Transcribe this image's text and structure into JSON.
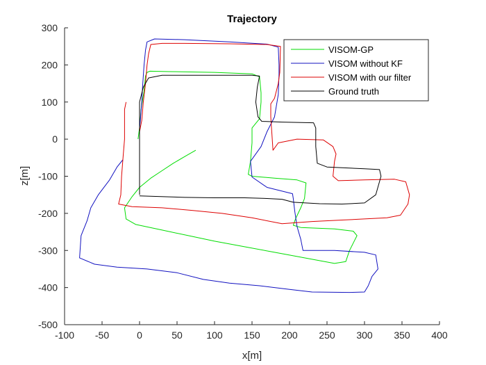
{
  "chart_data": {
    "type": "line",
    "title": "Trajectory",
    "xlabel": "x[m]",
    "ylabel": "z[m]",
    "xlim": [
      -100,
      400
    ],
    "ylim": [
      -500,
      300
    ],
    "xticks": [
      -100,
      -50,
      0,
      50,
      100,
      150,
      200,
      250,
      300,
      350,
      400
    ],
    "yticks": [
      -500,
      -400,
      -300,
      -200,
      -100,
      0,
      100,
      200,
      300
    ],
    "grid": false,
    "legend_position": "top-right",
    "series": [
      {
        "name": "VISOM-GP",
        "color": "#00dd00",
        "points": [
          [
            75,
            -30
          ],
          [
            62,
            -45
          ],
          [
            45,
            -65
          ],
          [
            30,
            -85
          ],
          [
            15,
            -105
          ],
          [
            0,
            -130
          ],
          [
            -10,
            -155
          ],
          [
            -20,
            -185
          ],
          [
            -18,
            -215
          ],
          [
            -5,
            -230
          ],
          [
            30,
            -245
          ],
          [
            70,
            -262
          ],
          [
            100,
            -275
          ],
          [
            140,
            -290
          ],
          [
            180,
            -305
          ],
          [
            220,
            -320
          ],
          [
            260,
            -335
          ],
          [
            275,
            -330
          ],
          [
            280,
            -300
          ],
          [
            290,
            -260
          ],
          [
            285,
            -248
          ],
          [
            260,
            -242
          ],
          [
            215,
            -238
          ],
          [
            205,
            -232
          ],
          [
            208,
            -215
          ],
          [
            215,
            -185
          ],
          [
            220,
            -160
          ],
          [
            222,
            -118
          ],
          [
            210,
            -110
          ],
          [
            180,
            -105
          ],
          [
            150,
            -100
          ],
          [
            145,
            -95
          ],
          [
            148,
            -60
          ],
          [
            150,
            -10
          ],
          [
            150,
            30
          ],
          [
            160,
            55
          ],
          [
            162,
            100
          ],
          [
            162,
            125
          ],
          [
            160,
            168
          ],
          [
            150,
            176
          ],
          [
            100,
            180
          ],
          [
            40,
            182
          ],
          [
            14,
            183
          ],
          [
            10,
            180
          ],
          [
            8,
            170
          ],
          [
            6,
            130
          ],
          [
            2,
            80
          ],
          [
            0,
            30
          ],
          [
            -2,
            0
          ]
        ]
      },
      {
        "name": "VISOM without KF",
        "color": "#1010c0",
        "points": [
          [
            -22,
            -55
          ],
          [
            -30,
            -75
          ],
          [
            -40,
            -110
          ],
          [
            -55,
            -150
          ],
          [
            -65,
            -185
          ],
          [
            -70,
            -220
          ],
          [
            -78,
            -260
          ],
          [
            -80,
            -320
          ],
          [
            -60,
            -337
          ],
          [
            -30,
            -345
          ],
          [
            10,
            -350
          ],
          [
            50,
            -360
          ],
          [
            85,
            -378
          ],
          [
            120,
            -388
          ],
          [
            160,
            -395
          ],
          [
            200,
            -405
          ],
          [
            230,
            -412
          ],
          [
            280,
            -413
          ],
          [
            300,
            -412
          ],
          [
            305,
            -395
          ],
          [
            310,
            -370
          ],
          [
            318,
            -350
          ],
          [
            315,
            -312
          ],
          [
            300,
            -305
          ],
          [
            260,
            -300
          ],
          [
            228,
            -300
          ],
          [
            218,
            -300
          ],
          [
            215,
            -270
          ],
          [
            210,
            -235
          ],
          [
            207,
            -195
          ],
          [
            205,
            -160
          ],
          [
            204,
            -147
          ],
          [
            190,
            -140
          ],
          [
            170,
            -130
          ],
          [
            150,
            -102
          ],
          [
            148,
            -60
          ],
          [
            162,
            -20
          ],
          [
            170,
            20
          ],
          [
            180,
            60
          ],
          [
            185,
            120
          ],
          [
            186,
            175
          ],
          [
            186,
            200
          ],
          [
            185,
            248
          ],
          [
            170,
            256
          ],
          [
            120,
            262
          ],
          [
            60,
            268
          ],
          [
            20,
            270
          ],
          [
            10,
            262
          ],
          [
            8,
            240
          ],
          [
            6,
            200
          ],
          [
            4,
            140
          ],
          [
            3,
            100
          ],
          [
            1,
            50
          ],
          [
            0,
            30
          ]
        ]
      },
      {
        "name": "VISOM with our filter",
        "color": "#dd0000",
        "points": [
          [
            -18,
            100
          ],
          [
            -20,
            80
          ],
          [
            -20,
            40
          ],
          [
            -20,
            0
          ],
          [
            -22,
            -50
          ],
          [
            -24,
            -100
          ],
          [
            -25,
            -150
          ],
          [
            -28,
            -175
          ],
          [
            -10,
            -182
          ],
          [
            30,
            -185
          ],
          [
            70,
            -192
          ],
          [
            110,
            -200
          ],
          [
            150,
            -212
          ],
          [
            190,
            -228
          ],
          [
            230,
            -222
          ],
          [
            270,
            -218
          ],
          [
            300,
            -215
          ],
          [
            330,
            -212
          ],
          [
            348,
            -205
          ],
          [
            358,
            -175
          ],
          [
            360,
            -150
          ],
          [
            355,
            -115
          ],
          [
            340,
            -108
          ],
          [
            300,
            -110
          ],
          [
            265,
            -112
          ],
          [
            258,
            -100
          ],
          [
            260,
            -60
          ],
          [
            262,
            -40
          ],
          [
            258,
            -20
          ],
          [
            245,
            -2
          ],
          [
            210,
            0
          ],
          [
            185,
            -10
          ],
          [
            178,
            -30
          ],
          [
            175,
            60
          ],
          [
            175,
            95
          ],
          [
            180,
            110
          ],
          [
            185,
            150
          ],
          [
            187,
            180
          ],
          [
            188,
            250
          ],
          [
            170,
            255
          ],
          [
            120,
            257
          ],
          [
            60,
            258
          ],
          [
            30,
            258
          ],
          [
            15,
            255
          ],
          [
            12,
            230
          ],
          [
            10,
            200
          ],
          [
            8,
            150
          ],
          [
            5,
            100
          ],
          [
            3,
            50
          ],
          [
            0,
            20
          ]
        ]
      },
      {
        "name": "Ground truth",
        "color": "#000000",
        "points": [
          [
            0,
            -150
          ],
          [
            0,
            -100
          ],
          [
            0,
            -50
          ],
          [
            0,
            0
          ],
          [
            0,
            50
          ],
          [
            0,
            100
          ],
          [
            5,
            140
          ],
          [
            12,
            165
          ],
          [
            30,
            172
          ],
          [
            80,
            172
          ],
          [
            150,
            172
          ],
          [
            160,
            170
          ],
          [
            157,
            140
          ],
          [
            155,
            100
          ],
          [
            158,
            60
          ],
          [
            163,
            48
          ],
          [
            190,
            46
          ],
          [
            232,
            44
          ],
          [
            235,
            30
          ],
          [
            235,
            -20
          ],
          [
            237,
            -65
          ],
          [
            250,
            -75
          ],
          [
            300,
            -80
          ],
          [
            320,
            -82
          ],
          [
            322,
            -100
          ],
          [
            315,
            -150
          ],
          [
            300,
            -172
          ],
          [
            270,
            -175
          ],
          [
            240,
            -174
          ],
          [
            205,
            -170
          ],
          [
            190,
            -162
          ],
          [
            170,
            -160
          ],
          [
            140,
            -158
          ],
          [
            100,
            -158
          ],
          [
            60,
            -157
          ],
          [
            0,
            -153
          ]
        ]
      }
    ]
  }
}
